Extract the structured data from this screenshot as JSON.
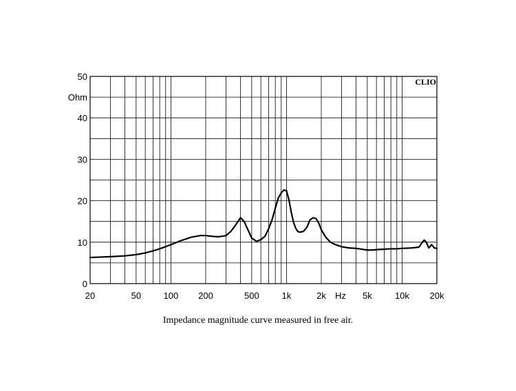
{
  "chart_data": {
    "type": "line",
    "title": "",
    "xlabel": "Hz",
    "ylabel": "Ohm",
    "xscale": "log",
    "xlim": [
      20,
      20000
    ],
    "ylim": [
      0,
      50
    ],
    "grid": true,
    "brand": "CLIO",
    "caption": "Impedance magnitude curve measured in free air.",
    "x_ticks": [
      {
        "value": 20,
        "label": "20"
      },
      {
        "value": 50,
        "label": "50"
      },
      {
        "value": 100,
        "label": "100"
      },
      {
        "value": 200,
        "label": "200"
      },
      {
        "value": 500,
        "label": "500"
      },
      {
        "value": 1000,
        "label": "1k"
      },
      {
        "value": 2000,
        "label": "2k"
      },
      {
        "value": 5000,
        "label": "5k"
      },
      {
        "value": 10000,
        "label": "10k"
      },
      {
        "value": 20000,
        "label": "20k"
      }
    ],
    "y_ticks": [
      {
        "value": 0,
        "label": "0"
      },
      {
        "value": 10,
        "label": "10"
      },
      {
        "value": 20,
        "label": "20"
      },
      {
        "value": 30,
        "label": "30"
      },
      {
        "value": 40,
        "label": "40"
      },
      {
        "value": 50,
        "label": "50"
      }
    ],
    "series": [
      {
        "color": "#000000",
        "x": [
          20,
          30,
          40,
          50,
          60,
          70,
          80,
          100,
          120,
          150,
          180,
          200,
          230,
          260,
          300,
          330,
          360,
          400,
          430,
          460,
          500,
          550,
          600,
          650,
          700,
          750,
          800,
          850,
          900,
          950,
          1000,
          1050,
          1100,
          1150,
          1200,
          1250,
          1300,
          1400,
          1500,
          1600,
          1700,
          1800,
          1900,
          2000,
          2100,
          2200,
          2400,
          2600,
          3000,
          3500,
          4000,
          4500,
          5000,
          5500,
          6000,
          7000,
          8000,
          9000,
          10000,
          12000,
          14000,
          15000,
          15500,
          16000,
          16500,
          17000,
          18000,
          19000,
          20000
        ],
        "values": [
          6.3,
          6.5,
          6.7,
          7.0,
          7.4,
          7.9,
          8.4,
          9.4,
          10.3,
          11.2,
          11.6,
          11.6,
          11.4,
          11.3,
          11.6,
          12.6,
          14.0,
          15.9,
          15.0,
          13.2,
          11.0,
          10.2,
          10.6,
          11.4,
          13.2,
          15.4,
          18.2,
          20.7,
          21.9,
          22.6,
          22.4,
          20.2,
          17.2,
          14.8,
          13.4,
          12.6,
          12.4,
          12.6,
          13.6,
          15.4,
          15.9,
          15.7,
          14.6,
          13.0,
          12.0,
          11.1,
          10.0,
          9.5,
          8.9,
          8.6,
          8.5,
          8.3,
          8.1,
          8.1,
          8.2,
          8.3,
          8.4,
          8.4,
          8.5,
          8.6,
          8.8,
          10.0,
          10.5,
          10.2,
          9.5,
          8.6,
          9.4,
          8.6,
          8.5
        ]
      }
    ]
  }
}
